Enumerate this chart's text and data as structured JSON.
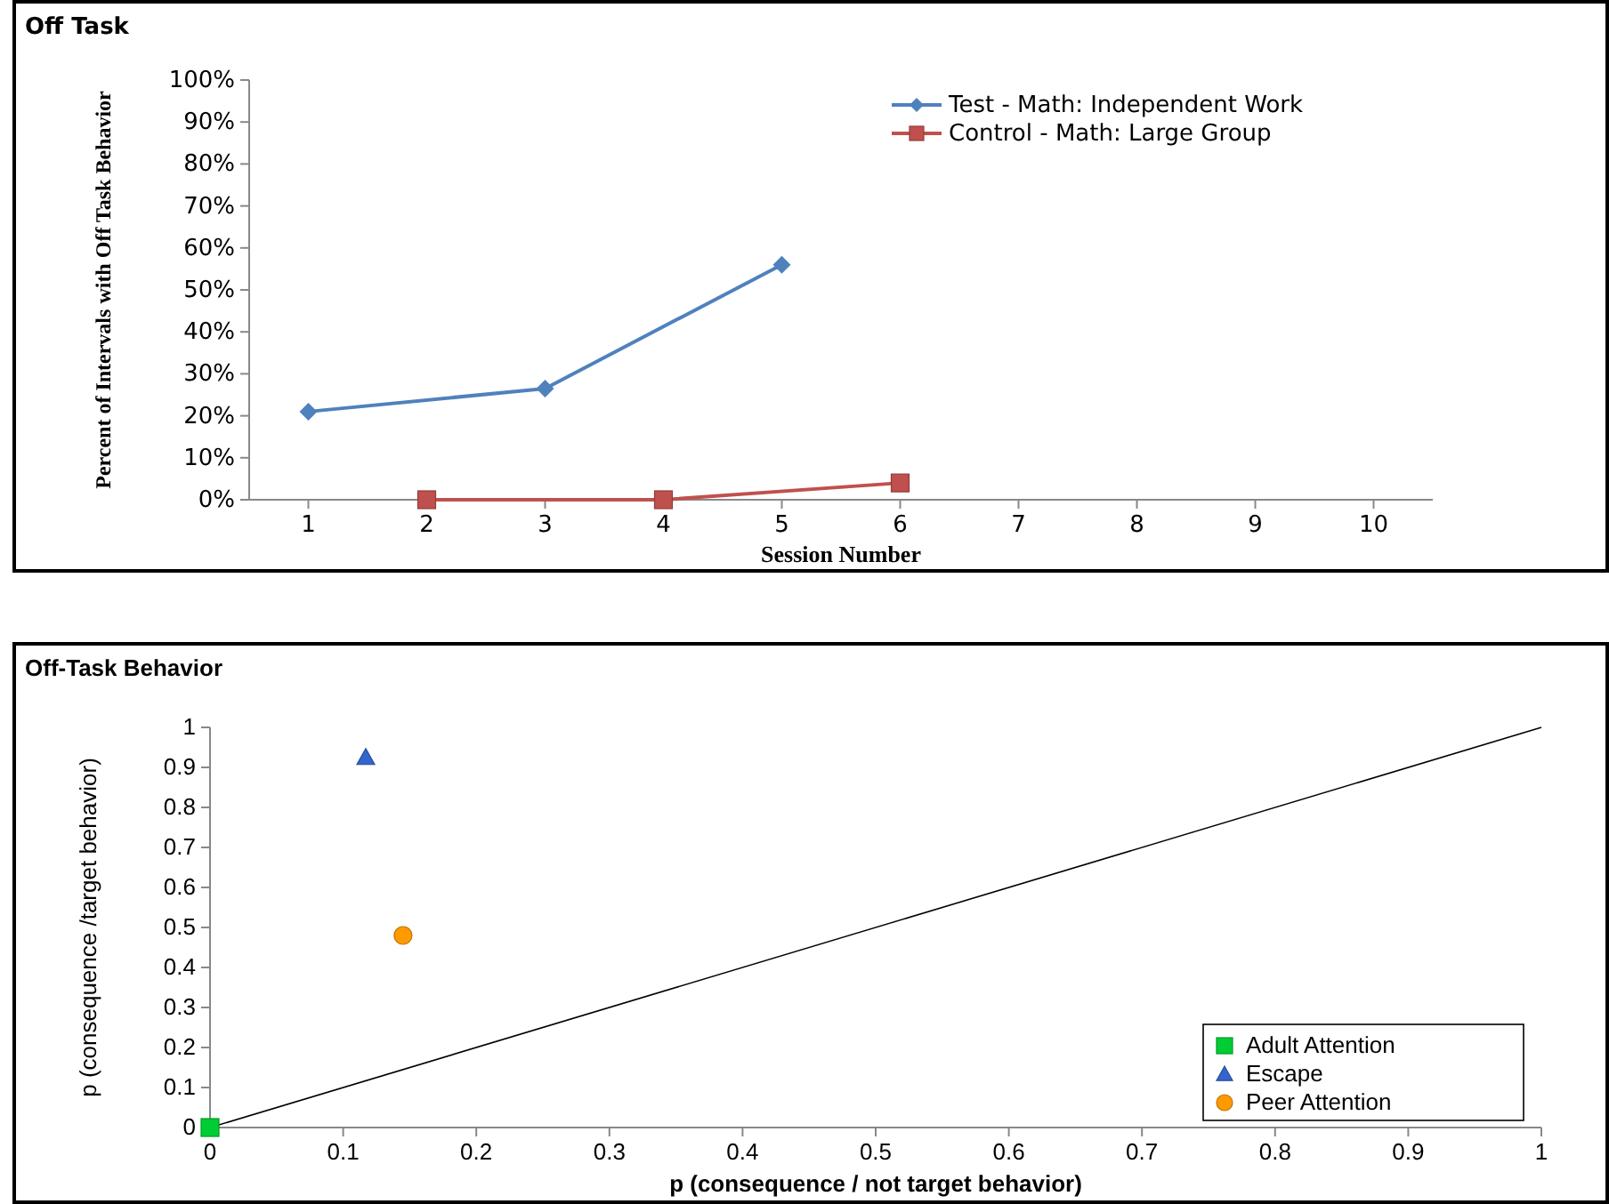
{
  "chart_data": [
    {
      "type": "line",
      "title": "Off Task",
      "xlabel": "Session Number",
      "ylabel": "Percent of Intervals with Off Task Behavior",
      "xlim": [
        0.5,
        10.5
      ],
      "xticks": [
        1,
        2,
        3,
        4,
        5,
        6,
        7,
        8,
        9,
        10
      ],
      "ylim": [
        0,
        100
      ],
      "yticks": [
        {
          "value": 0,
          "label": "0%"
        },
        {
          "value": 10,
          "label": "10%"
        },
        {
          "value": 20,
          "label": "20%"
        },
        {
          "value": 30,
          "label": "30%"
        },
        {
          "value": 40,
          "label": "40%"
        },
        {
          "value": 50,
          "label": "50%"
        },
        {
          "value": 60,
          "label": "60%"
        },
        {
          "value": 70,
          "label": "70%"
        },
        {
          "value": 80,
          "label": "80%"
        },
        {
          "value": 90,
          "label": "90%"
        },
        {
          "value": 100,
          "label": "100%"
        }
      ],
      "grid": false,
      "legend": "top right",
      "series": [
        {
          "name": "Test - Math: Independent  Work",
          "color": "#4f81bd",
          "marker": "diamond",
          "x": [
            1,
            3,
            5
          ],
          "values": [
            21,
            26.5,
            56
          ]
        },
        {
          "name": "Control - Math: Large Group",
          "color": "#c0504d",
          "marker": "square",
          "x": [
            2,
            4,
            6
          ],
          "values": [
            0,
            0,
            4
          ]
        }
      ]
    },
    {
      "type": "scatter",
      "title": "Off-Task Behavior",
      "xlabel": "p (consequence / not target behavior)",
      "ylabel": "p (consequence /target behavior)",
      "xlim": [
        0,
        1
      ],
      "xticks": [
        0,
        0.1,
        0.2,
        0.3,
        0.4,
        0.5,
        0.6,
        0.7,
        0.8,
        0.9,
        1
      ],
      "ylim": [
        0,
        1
      ],
      "yticks": [
        0,
        0.1,
        0.2,
        0.3,
        0.4,
        0.5,
        0.6,
        0.7,
        0.8,
        0.9,
        1
      ],
      "grid": false,
      "legend": "bottom right",
      "series": [
        {
          "type": "line",
          "color": "#000000",
          "marker": "none",
          "x": [
            0,
            1
          ],
          "values": [
            0,
            1
          ]
        },
        {
          "name": "Adult Attention",
          "color": "#00cc33",
          "marker": "square",
          "x": [
            0
          ],
          "values": [
            0
          ]
        },
        {
          "name": "Escape",
          "color": "#3366cc",
          "marker": "triangle",
          "x": [
            0.117
          ],
          "values": [
            0.925
          ]
        },
        {
          "name": "Peer Attention",
          "color": "#ff9900",
          "marker": "circle",
          "x": [
            0.145
          ],
          "values": [
            0.48
          ]
        }
      ]
    }
  ]
}
